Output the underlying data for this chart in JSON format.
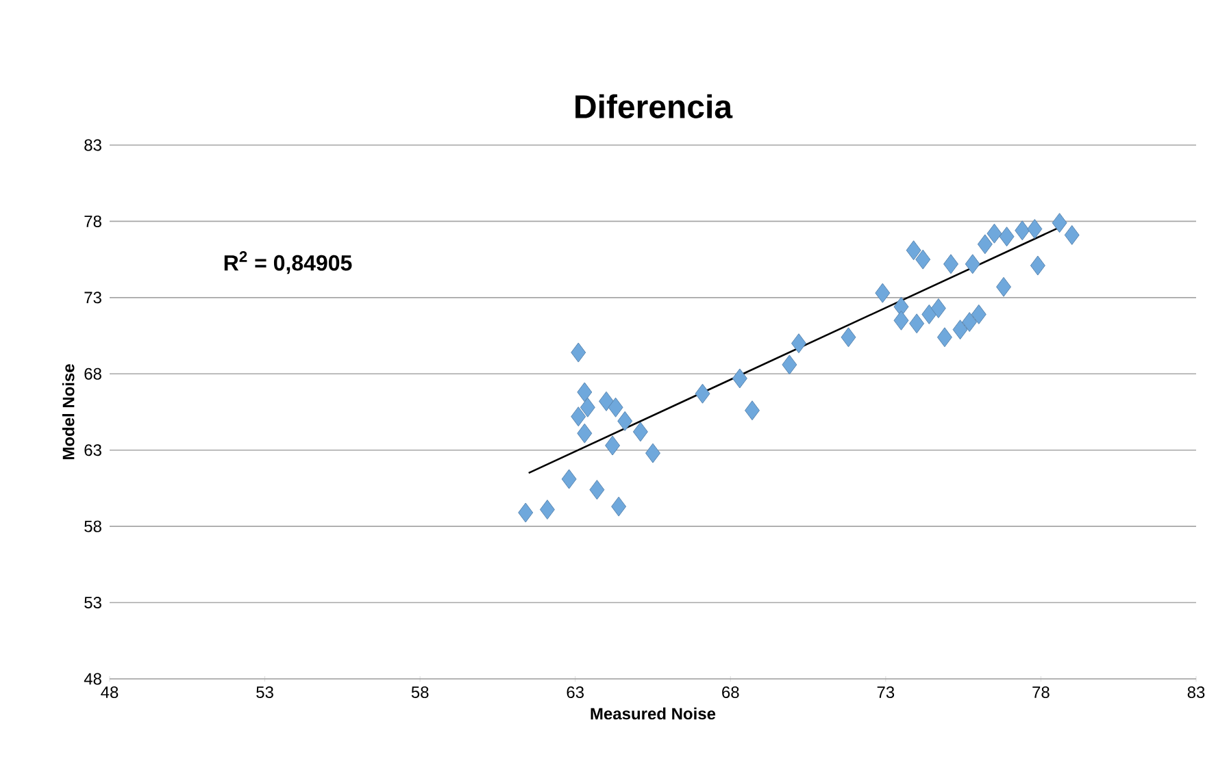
{
  "chart_data": {
    "type": "scatter",
    "title": "Diferencia",
    "xlabel": "Measured Noise",
    "ylabel": "Model Noise",
    "xlim": [
      48,
      83
    ],
    "ylim": [
      48,
      83
    ],
    "xticks": [
      48,
      53,
      58,
      63,
      68,
      73,
      78,
      83
    ],
    "yticks": [
      48,
      53,
      58,
      63,
      68,
      73,
      78,
      83
    ],
    "grid": "y",
    "marker": "diamond",
    "annotations": [
      "R$^{2}$ = 0,84905"
    ],
    "series": [
      {
        "color": "#6fa8dc",
        "x": [
          61.4,
          62.1,
          62.8,
          63.7,
          64.4,
          63.1,
          63.1,
          63.3,
          63.3,
          63.4,
          64.0,
          64.3,
          64.2,
          64.6,
          65.1,
          65.5,
          67.1,
          68.3,
          68.7,
          69.9,
          70.2,
          71.8,
          72.9,
          73.5,
          73.5,
          74.0,
          73.9,
          74.2,
          74.4,
          74.7,
          75.1,
          74.9,
          75.4,
          75.7,
          76.0,
          75.8,
          76.2,
          76.5,
          76.9,
          77.4,
          77.8,
          76.8,
          77.9,
          78.6,
          79.0
        ],
        "values": [
          58.9,
          59.1,
          61.1,
          60.4,
          59.3,
          65.2,
          69.4,
          66.8,
          64.1,
          65.8,
          66.2,
          65.8,
          63.3,
          64.9,
          64.2,
          62.8,
          66.7,
          67.7,
          65.6,
          68.6,
          70.0,
          70.4,
          73.3,
          72.4,
          71.5,
          71.3,
          76.1,
          75.5,
          71.9,
          72.3,
          75.2,
          70.4,
          70.9,
          71.4,
          71.9,
          75.2,
          76.5,
          77.2,
          77.0,
          77.4,
          77.5,
          73.7,
          75.1,
          77.9,
          77.1
        ]
      },
      {
        "type": "line",
        "marker": "none",
        "color": "#000000",
        "x": [
          61.5,
          78.7
        ],
        "values": [
          61.5,
          77.7
        ]
      }
    ]
  }
}
